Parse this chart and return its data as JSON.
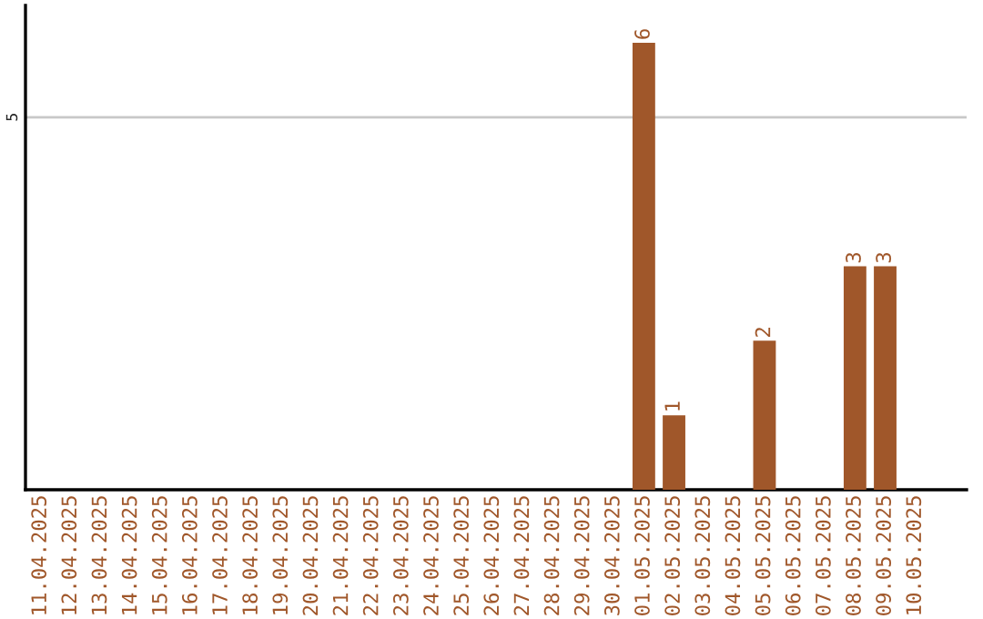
{
  "chart_data": {
    "type": "bar",
    "categories": [
      "11.04.2025",
      "12.04.2025",
      "13.04.2025",
      "14.04.2025",
      "15.04.2025",
      "16.04.2025",
      "17.04.2025",
      "18.04.2025",
      "19.04.2025",
      "20.04.2025",
      "21.04.2025",
      "22.04.2025",
      "23.04.2025",
      "24.04.2025",
      "25.04.2025",
      "26.04.2025",
      "27.04.2025",
      "28.04.2025",
      "29.04.2025",
      "30.04.2025",
      "01.05.2025",
      "02.05.2025",
      "03.05.2025",
      "04.05.2025",
      "05.05.2025",
      "06.05.2025",
      "07.05.2025",
      "08.05.2025",
      "09.05.2025",
      "10.05.2025"
    ],
    "values": [
      null,
      null,
      null,
      null,
      null,
      null,
      null,
      null,
      null,
      null,
      null,
      null,
      null,
      null,
      null,
      null,
      null,
      null,
      null,
      null,
      6,
      1,
      null,
      null,
      2,
      null,
      null,
      3,
      3,
      null
    ],
    "data_labels": true,
    "color": "#a0572a",
    "ylim": [
      0,
      6.5
    ],
    "yticks": [
      5
    ],
    "grid": "y"
  }
}
